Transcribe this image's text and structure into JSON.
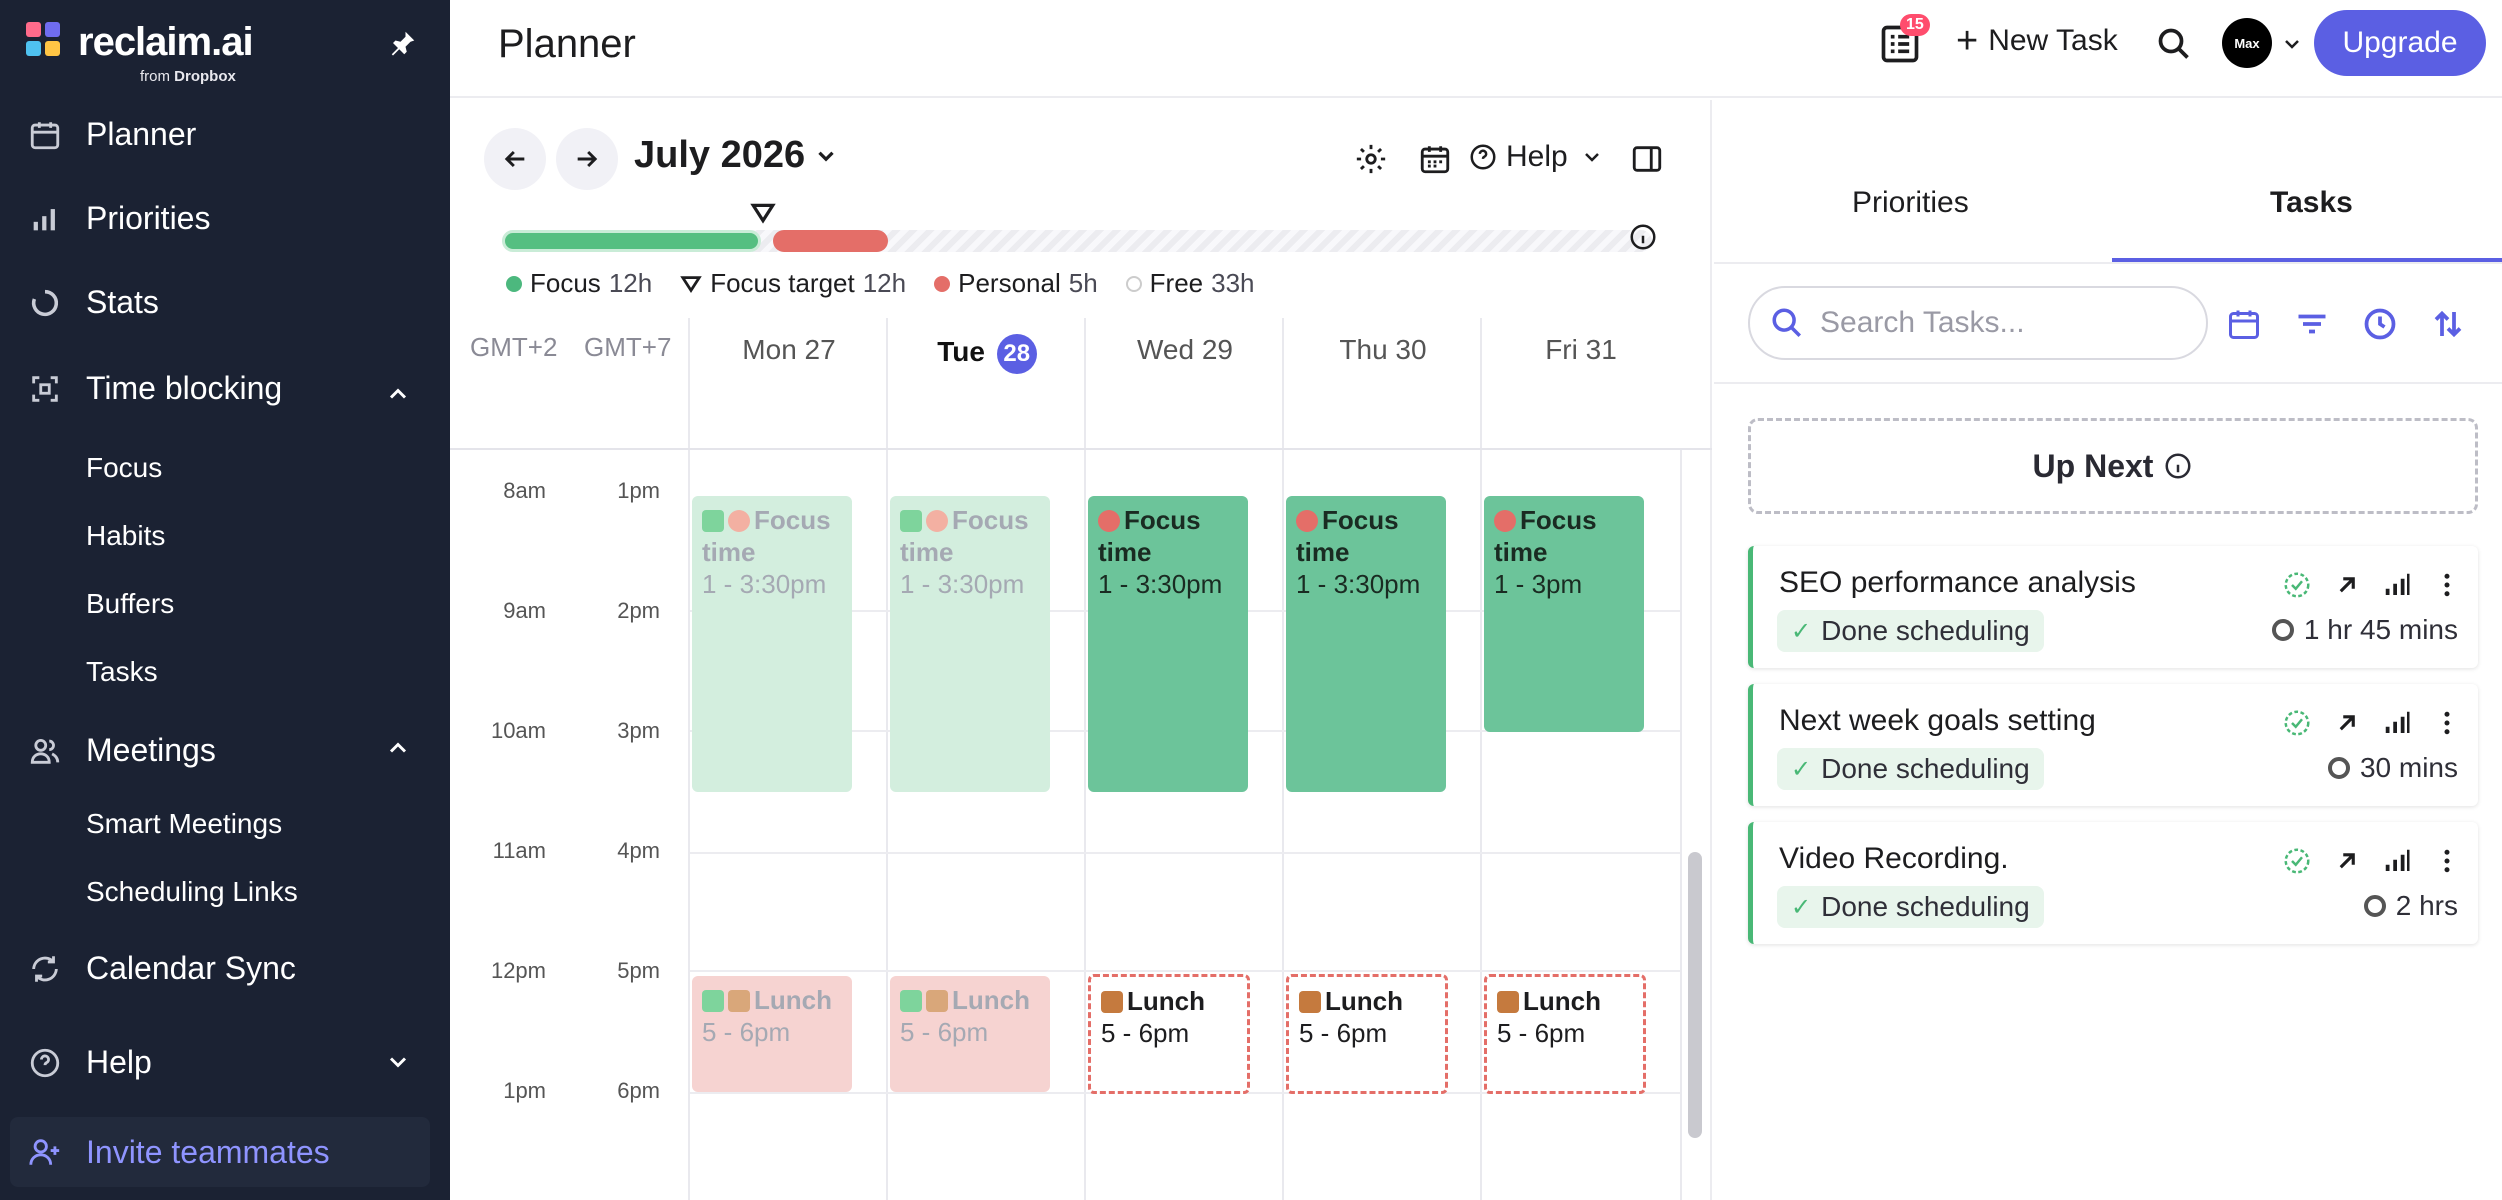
{
  "sidebar": {
    "brand": "reclaim.ai",
    "brand_sub_prefix": "from",
    "brand_sub_name": "Dropbox",
    "items": [
      {
        "label": "Planner",
        "icon": "calendar-icon"
      },
      {
        "label": "Priorities",
        "icon": "bar-chart-icon"
      },
      {
        "label": "Stats",
        "icon": "stats-ring-icon"
      },
      {
        "label": "Time blocking",
        "icon": "time-blocking-icon"
      },
      {
        "label": "Meetings",
        "icon": "people-icon"
      },
      {
        "label": "Calendar Sync",
        "icon": "sync-icon"
      },
      {
        "label": "Help",
        "icon": "help-icon"
      }
    ],
    "time_blocking_sub": [
      "Focus",
      "Habits",
      "Buffers",
      "Tasks"
    ],
    "meetings_sub": [
      "Smart Meetings",
      "Scheduling Links"
    ],
    "invite": "Invite teammates"
  },
  "topbar": {
    "title": "Planner",
    "tasks_badge": "15",
    "new_task": "New Task",
    "avatar_text": "Max",
    "upgrade": "Upgrade"
  },
  "planner": {
    "month": "July 2026",
    "help": "Help",
    "legend": [
      {
        "label": "Focus",
        "value": "12h",
        "color": "#4cb87e"
      },
      {
        "label": "Focus target",
        "value": "12h",
        "color": "#1d1d1f"
      },
      {
        "label": "Personal",
        "value": "5h",
        "color": "#e46e68"
      },
      {
        "label": "Free",
        "value": "33h",
        "color": "#ffffff"
      }
    ],
    "progress": {
      "focus_fraction": 0.225,
      "personal_fraction": 0.1
    },
    "timezones": [
      "GMT+2",
      "GMT+7"
    ],
    "days": [
      {
        "label": "Mon 27",
        "today": false
      },
      {
        "label": "Tue",
        "num": "28",
        "today": true
      },
      {
        "label": "Wed 29",
        "today": false
      },
      {
        "label": "Thu 30",
        "today": false
      },
      {
        "label": "Fri 31",
        "today": false
      }
    ],
    "hours_gmt2": [
      "8am",
      "9am",
      "10am",
      "11am",
      "12pm",
      "1pm"
    ],
    "hours_gmt7": [
      "1pm",
      "2pm",
      "3pm",
      "4pm",
      "5pm",
      "6pm"
    ],
    "events": {
      "focus_title_1": "Focus",
      "focus_title_2": "time",
      "focus_time": "1 - 3:30pm",
      "focus_time_fri": "1 - 3pm",
      "lunch_title": "Lunch",
      "lunch_time": "5 - 6pm"
    }
  },
  "right_panel": {
    "tabs": [
      "Priorities",
      "Tasks"
    ],
    "active_tab": "Tasks",
    "search_placeholder": "Search Tasks...",
    "up_next": "Up Next",
    "tasks": [
      {
        "title": "SEO performance analysis",
        "status": "Done scheduling",
        "duration": "1 hr 45 mins"
      },
      {
        "title": "Next week goals setting",
        "status": "Done scheduling",
        "duration": "30 mins"
      },
      {
        "title": "Video Recording.",
        "status": "Done scheduling",
        "duration": "2 hrs"
      }
    ]
  },
  "colors": {
    "sidebar_bg": "#1b2233",
    "accent": "#5b5fe3",
    "focus_green": "#6cc49a",
    "lunch_red": "#e46e68"
  }
}
